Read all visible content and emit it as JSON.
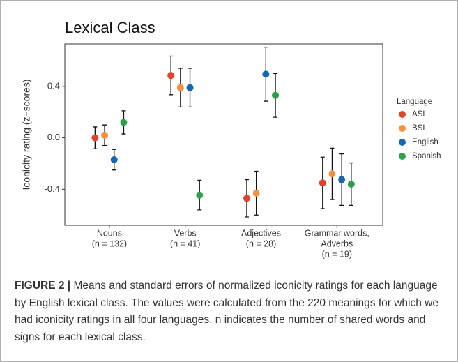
{
  "chart_data": {
    "type": "errorbar",
    "title": "Lexical Class",
    "y_label": "Iconicity rating (z−scores)",
    "categories": [
      [
        "Nouns",
        "(n = 132)"
      ],
      [
        "Verbs",
        "(n = 41)"
      ],
      [
        "Adjectives",
        "(n = 28)"
      ],
      [
        "Grammar words,",
        "Adverbs",
        "(n = 19)"
      ]
    ],
    "series": [
      {
        "name": "ASL",
        "color": "#e0442c",
        "values": [
          0.0,
          0.485,
          -0.47,
          -0.35
        ],
        "errors": [
          0.085,
          0.15,
          0.145,
          0.2
        ]
      },
      {
        "name": "BSL",
        "color": "#f5923e",
        "values": [
          0.02,
          0.39,
          -0.43,
          -0.28
        ],
        "errors": [
          0.08,
          0.15,
          0.17,
          0.2
        ]
      },
      {
        "name": "English",
        "color": "#1767ad",
        "values": [
          -0.17,
          0.39,
          0.495,
          -0.325
        ],
        "errors": [
          0.08,
          0.15,
          0.21,
          0.2
        ]
      },
      {
        "name": "Spanish",
        "color": "#2ea04a",
        "values": [
          0.12,
          -0.445,
          0.33,
          -0.36
        ],
        "errors": [
          0.09,
          0.115,
          0.17,
          0.165
        ]
      }
    ],
    "legend_title": "Language",
    "legend": "right",
    "ylim": [
      -0.68,
      0.73
    ],
    "yticks": [
      -0.4,
      {
        "value": 0,
        "label": "0.0"
      },
      0.4
    ],
    "grid": false
  },
  "caption": {
    "label": "FIGURE 2 |",
    "text": "Means and standard errors of normalized iconicity ratings for each language by English lexical class. The values were calculated from the 220 meanings for which we had iconicity ratings in all four languages. n indicates the number of shared words and signs for each lexical class."
  }
}
